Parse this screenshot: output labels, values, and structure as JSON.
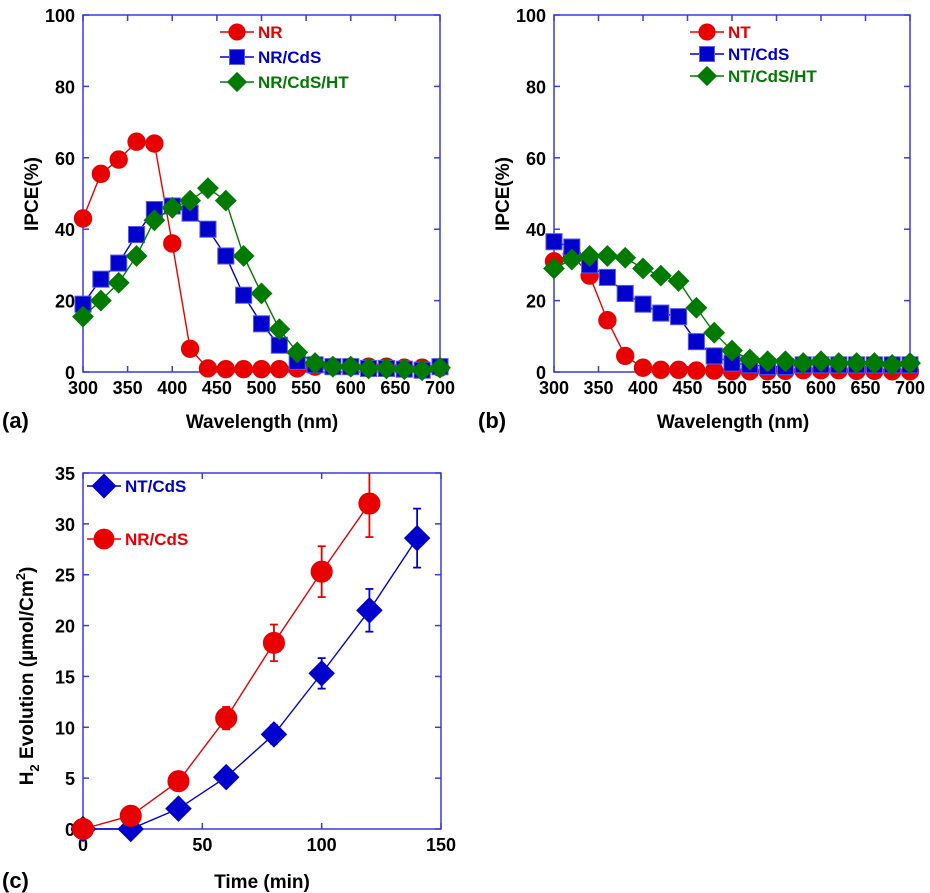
{
  "colors": {
    "frame": "#3b3bd9",
    "red": "#e80000",
    "blue": "#0000cc",
    "green": "#007a00"
  },
  "chart_data": [
    {
      "id": "a",
      "panel_label": "(a)",
      "type": "line",
      "title": "",
      "xlabel": "Wavelength (nm)",
      "ylabel": "IPCE(%)",
      "xlim": [
        300,
        700
      ],
      "ylim": [
        0,
        100
      ],
      "xticks": [
        300,
        350,
        400,
        450,
        500,
        550,
        600,
        650,
        700
      ],
      "yticks": [
        0,
        20,
        40,
        60,
        80,
        100
      ],
      "grid": false,
      "legend_position": "top-center",
      "x": [
        300,
        320,
        340,
        360,
        380,
        400,
        420,
        440,
        460,
        480,
        500,
        520,
        540,
        560,
        580,
        600,
        620,
        640,
        660,
        680,
        700
      ],
      "series": [
        {
          "name": "NR",
          "color": "red",
          "marker": "circle",
          "values": [
            43,
            55.5,
            59.5,
            64.5,
            64,
            36,
            6.5,
            1,
            0.8,
            0.8,
            0.8,
            0.8,
            1,
            1.5,
            1.5,
            1.5,
            1.5,
            1.5,
            1.2,
            1.2,
            1.2
          ]
        },
        {
          "name": "NR/CdS",
          "color": "blue",
          "marker": "square",
          "values": [
            19,
            26,
            30.5,
            38.5,
            45.5,
            46.5,
            44.5,
            40,
            32.5,
            21.5,
            13.5,
            7.5,
            3,
            2,
            1.5,
            1.5,
            1,
            1,
            0.8,
            0.5,
            1.5
          ]
        },
        {
          "name": "NR/CdS/HT",
          "color": "green",
          "marker": "diamond",
          "values": [
            15.5,
            20,
            25,
            32.5,
            42.5,
            46,
            48,
            51.5,
            48,
            32.5,
            22,
            12,
            5.5,
            2.5,
            1.5,
            1.5,
            1,
            1,
            0.8,
            0.5,
            1.2
          ]
        }
      ]
    },
    {
      "id": "b",
      "panel_label": "(b)",
      "type": "line",
      "title": "",
      "xlabel": "Wavelength (nm)",
      "ylabel": "IPCE(%)",
      "xlim": [
        300,
        700
      ],
      "ylim": [
        0,
        100
      ],
      "xticks": [
        300,
        350,
        400,
        450,
        500,
        550,
        600,
        650,
        700
      ],
      "yticks": [
        0,
        20,
        40,
        60,
        80,
        100
      ],
      "grid": false,
      "legend_position": "top-center",
      "x": [
        300,
        320,
        340,
        360,
        380,
        400,
        420,
        440,
        460,
        480,
        500,
        520,
        540,
        560,
        580,
        600,
        620,
        640,
        660,
        680,
        700
      ],
      "series": [
        {
          "name": "NT",
          "color": "red",
          "marker": "circle",
          "values": [
            31,
            33,
            27,
            14.5,
            4.5,
            1.2,
            0.6,
            0.6,
            0.4,
            0.4,
            0.2,
            0.2,
            0.2,
            0.3,
            0.5,
            0.5,
            0.5,
            0.3,
            0.3,
            0.2,
            0.2
          ]
        },
        {
          "name": "NT/CdS",
          "color": "blue",
          "marker": "square",
          "values": [
            36.5,
            35,
            30,
            26.5,
            22,
            19,
            16.5,
            15.5,
            8.5,
            4.5,
            2.5,
            2,
            1.5,
            1.5,
            2,
            2,
            2,
            2,
            2,
            2,
            2
          ]
        },
        {
          "name": "NT/CdS/HT",
          "color": "green",
          "marker": "diamond",
          "values": [
            29,
            31.5,
            32.5,
            32.5,
            32,
            29,
            27,
            25.5,
            18,
            11,
            6,
            3.5,
            3,
            3,
            2.5,
            3,
            2.5,
            2.5,
            2.5,
            2,
            2.5
          ]
        }
      ]
    },
    {
      "id": "c",
      "panel_label": "(c)",
      "type": "line",
      "title": "",
      "xlabel": "Time (min)",
      "ylabel": "H2 Evolution (µmol/Cm2)",
      "ylabel_parts": {
        "h": "H",
        "sub": "2",
        "mid": " Evolution (µmol/Cm",
        "sup": "2",
        "end": ")"
      },
      "xlim": [
        0,
        150
      ],
      "ylim": [
        0,
        35
      ],
      "xticks": [
        0,
        50,
        100,
        150
      ],
      "yticks": [
        0,
        5,
        10,
        15,
        20,
        25,
        30,
        35
      ],
      "grid": false,
      "legend_position": "top-left",
      "series": [
        {
          "name": "NT/CdS",
          "color": "blue",
          "marker": "diamond",
          "x": [
            0,
            20,
            40,
            60,
            80,
            100,
            120,
            140
          ],
          "values": [
            0,
            0,
            2,
            5.1,
            9.3,
            15.3,
            21.5,
            28.6
          ],
          "errors": [
            0,
            0,
            0,
            0,
            0.9,
            1.5,
            2.1,
            2.9
          ]
        },
        {
          "name": "NR/CdS",
          "color": "red",
          "marker": "circle",
          "x": [
            0,
            20,
            40,
            60,
            80,
            100,
            120
          ],
          "values": [
            0,
            1.3,
            4.7,
            10.9,
            18.3,
            25.3,
            32
          ],
          "errors": [
            0,
            0,
            0,
            1.1,
            1.8,
            2.5,
            3.3
          ]
        }
      ]
    }
  ]
}
